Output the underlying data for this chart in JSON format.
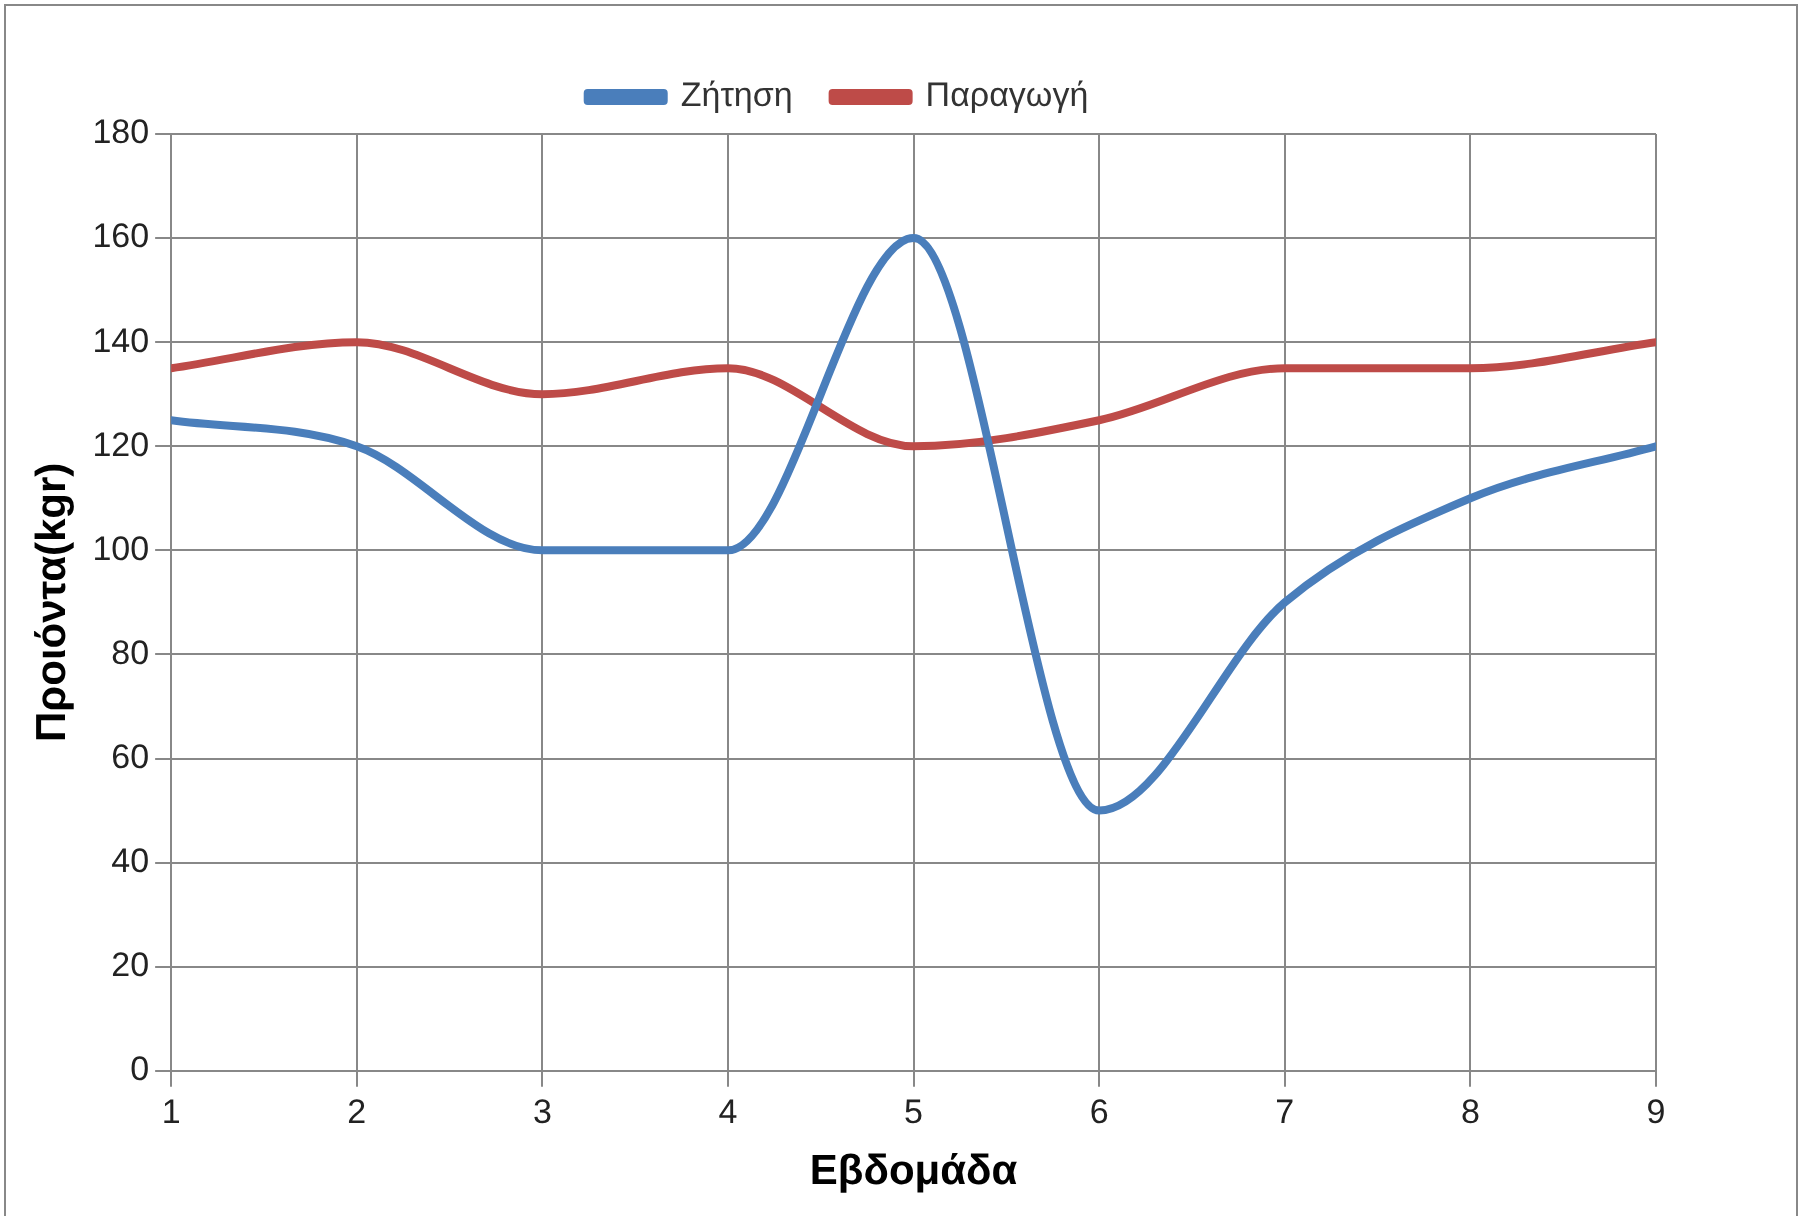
{
  "chart_data": {
    "type": "line",
    "xlabel": "Εβδομάδα",
    "ylabel": "Προιόντα(kgr)",
    "x": [
      1,
      2,
      3,
      4,
      5,
      6,
      7,
      8,
      9
    ],
    "series": [
      {
        "name": "Ζήτηση",
        "color": "#4a7ebb",
        "values": [
          125,
          120,
          100,
          100,
          160,
          50,
          90,
          110,
          120
        ]
      },
      {
        "name": "Παραγωγή",
        "color": "#be4b48",
        "values": [
          135,
          140,
          130,
          135,
          120,
          125,
          135,
          135,
          140
        ]
      }
    ],
    "xlim": [
      1,
      9
    ],
    "xticks": [
      1,
      2,
      3,
      4,
      5,
      6,
      7,
      8,
      9
    ],
    "ylim": [
      0,
      180
    ],
    "yticks": [
      0,
      20,
      40,
      60,
      80,
      100,
      120,
      140,
      160,
      180
    ],
    "grid": true,
    "legend": "top",
    "marker": "none",
    "line_style": "solid"
  }
}
